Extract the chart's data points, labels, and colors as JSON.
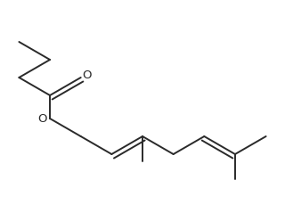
{
  "background_color": "#ffffff",
  "line_color": "#2a2a2a",
  "line_width": 1.4,
  "figsize": [
    3.2,
    2.48
  ],
  "dpi": 100,
  "O_carbonyl_label": "O",
  "O_ester_label": "O",
  "O_fontsize": 9.5
}
